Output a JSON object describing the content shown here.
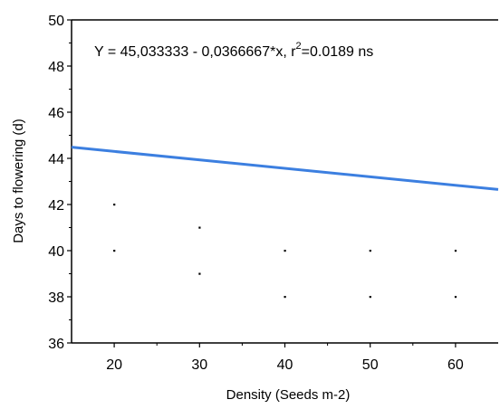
{
  "chart_data": {
    "type": "scatter",
    "xlabel": "Density (Seeds m-2)",
    "ylabel": "Days to flowering (d)",
    "xlim": [
      15,
      65
    ],
    "ylim": [
      36,
      50
    ],
    "x_ticks": [
      20,
      30,
      40,
      50,
      60
    ],
    "y_ticks": [
      36,
      38,
      40,
      42,
      44,
      46,
      48,
      50
    ],
    "grid": false,
    "points": [
      {
        "x": 20,
        "y": 42
      },
      {
        "x": 20,
        "y": 40
      },
      {
        "x": 30,
        "y": 41
      },
      {
        "x": 30,
        "y": 39
      },
      {
        "x": 40,
        "y": 40
      },
      {
        "x": 40,
        "y": 38
      },
      {
        "x": 50,
        "y": 40
      },
      {
        "x": 50,
        "y": 38
      },
      {
        "x": 60,
        "y": 40
      },
      {
        "x": 60,
        "y": 38
      }
    ],
    "regression": {
      "intercept": 45.033333,
      "slope": -0.0366667,
      "color": "#3c7fe0"
    },
    "annotation": {
      "equation_text": "Y = 45,033333 - 0,0366667*x,  r",
      "superscript": "2",
      "tail_text": "=0.0189 ns"
    }
  }
}
